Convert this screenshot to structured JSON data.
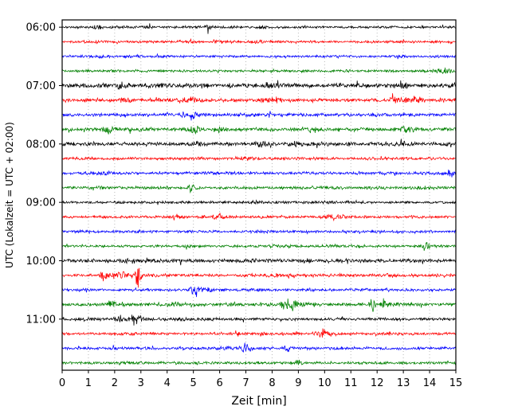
{
  "figure": {
    "background": "#ffffff",
    "frame_color": "#000000",
    "grid_color": "#b8b8b8"
  },
  "chart_data": {
    "type": "line",
    "subtype": "seismogram-dayplot",
    "title": "",
    "xlabel": "Zeit [min]",
    "ylabel": "UTC (Lokalzeit = UTC + 02:00)",
    "x_range": [
      0,
      15
    ],
    "x_ticks": [
      "0",
      "1",
      "2",
      "3",
      "4",
      "5",
      "6",
      "7",
      "8",
      "9",
      "10",
      "11",
      "12",
      "13",
      "14",
      "15"
    ],
    "minutes_per_row": 15,
    "grid": "dotted vertical line at every minute",
    "legend": "none",
    "hour_labels": [
      "06:00",
      "07:00",
      "08:00",
      "09:00",
      "10:00",
      "11:00"
    ],
    "hour_label_rows": [
      0,
      4,
      8,
      12,
      16,
      20
    ],
    "trace_colors": [
      "#000000",
      "#ff0000",
      "#0000ff",
      "#008000"
    ],
    "rows": [
      {
        "start": "06:00",
        "color_index": 0,
        "amp": 1.0,
        "events": [
          {
            "x": 1.3,
            "a": 1.6,
            "w": 0.15
          },
          {
            "x": 5.6,
            "a": 1.6,
            "w": 0.12
          },
          {
            "x": 7.6,
            "a": 1.4,
            "w": 0.12
          }
        ]
      },
      {
        "start": "06:15",
        "color_index": 1,
        "amp": 1.0,
        "events": [
          {
            "x": 7.5,
            "a": 1.0,
            "w": 0.25
          }
        ]
      },
      {
        "start": "06:30",
        "color_index": 2,
        "amp": 1.0,
        "events": [
          {
            "x": 1.5,
            "a": 0.9,
            "w": 0.15
          },
          {
            "x": 10.5,
            "a": 0.9,
            "w": 0.15
          }
        ]
      },
      {
        "start": "06:45",
        "color_index": 3,
        "amp": 1.1,
        "events": [
          {
            "x": 14.5,
            "a": 1.6,
            "w": 0.3
          }
        ]
      },
      {
        "start": "07:00",
        "color_index": 0,
        "amp": 1.8,
        "events": [
          {
            "x": 2.3,
            "a": 0.9,
            "w": 0.3
          },
          {
            "x": 5.5,
            "a": 0.8,
            "w": 0.2
          },
          {
            "x": 8.0,
            "a": 0.8,
            "w": 0.3
          },
          {
            "x": 13.0,
            "a": 0.7,
            "w": 0.3
          }
        ]
      },
      {
        "start": "07:15",
        "color_index": 1,
        "amp": 1.5,
        "events": [
          {
            "x": 2.4,
            "a": 1.2,
            "w": 0.2
          },
          {
            "x": 4.8,
            "a": 1.8,
            "w": 0.35
          },
          {
            "x": 8.0,
            "a": 1.2,
            "w": 0.3
          },
          {
            "x": 12.7,
            "a": 1.8,
            "w": 0.2
          },
          {
            "x": 13.6,
            "a": 1.2,
            "w": 0.2
          }
        ]
      },
      {
        "start": "07:30",
        "color_index": 2,
        "amp": 1.4,
        "events": [
          {
            "x": 4.6,
            "a": 1.2,
            "w": 0.15
          },
          {
            "x": 5.0,
            "a": 1.8,
            "w": 0.18
          }
        ]
      },
      {
        "start": "07:45",
        "color_index": 3,
        "amp": 1.5,
        "events": [
          {
            "x": 1.8,
            "a": 1.6,
            "w": 0.25
          },
          {
            "x": 5.0,
            "a": 1.4,
            "w": 0.3
          },
          {
            "x": 6.0,
            "a": 1.2,
            "w": 0.2
          },
          {
            "x": 9.5,
            "a": 0.9,
            "w": 0.3
          },
          {
            "x": 13.0,
            "a": 1.1,
            "w": 0.4
          }
        ]
      },
      {
        "start": "08:00",
        "color_index": 0,
        "amp": 1.7,
        "events": [
          {
            "x": 5.2,
            "a": 0.9,
            "w": 0.3
          },
          {
            "x": 7.6,
            "a": 1.4,
            "w": 0.2
          },
          {
            "x": 9.0,
            "a": 0.8,
            "w": 0.2
          }
        ]
      },
      {
        "start": "08:15",
        "color_index": 1,
        "amp": 1.2,
        "events": [
          {
            "x": 7.0,
            "a": 0.8,
            "w": 0.3
          }
        ]
      },
      {
        "start": "08:30",
        "color_index": 2,
        "amp": 1.2,
        "events": [
          {
            "x": 14.8,
            "a": 1.0,
            "w": 0.2
          }
        ]
      },
      {
        "start": "08:45",
        "color_index": 3,
        "amp": 1.2,
        "events": [
          {
            "x": 4.9,
            "a": 2.2,
            "w": 0.12
          },
          {
            "x": 13.5,
            "a": 0.9,
            "w": 0.2
          }
        ]
      },
      {
        "start": "09:00",
        "color_index": 0,
        "amp": 1.1,
        "events": [
          {
            "x": 7.3,
            "a": 0.8,
            "w": 0.2
          }
        ]
      },
      {
        "start": "09:15",
        "color_index": 1,
        "amp": 1.2,
        "events": [
          {
            "x": 6.0,
            "a": 0.8,
            "w": 0.2
          },
          {
            "x": 10.4,
            "a": 1.8,
            "w": 0.3
          }
        ]
      },
      {
        "start": "09:30",
        "color_index": 2,
        "amp": 1.1,
        "events": []
      },
      {
        "start": "09:45",
        "color_index": 3,
        "amp": 1.1,
        "events": [
          {
            "x": 13.9,
            "a": 1.4,
            "w": 0.15
          }
        ]
      },
      {
        "start": "10:00",
        "color_index": 0,
        "amp": 1.5,
        "events": [
          {
            "x": 2.6,
            "a": 1.0,
            "w": 0.3
          },
          {
            "x": 9.3,
            "a": 0.9,
            "w": 0.2
          }
        ]
      },
      {
        "start": "10:15",
        "color_index": 1,
        "amp": 1.3,
        "events": [
          {
            "x": 1.6,
            "a": 3.0,
            "w": 0.15
          },
          {
            "x": 2.2,
            "a": 1.6,
            "w": 0.3
          },
          {
            "x": 2.9,
            "a": 7.0,
            "w": 0.12
          }
        ]
      },
      {
        "start": "10:30",
        "color_index": 2,
        "amp": 1.2,
        "events": [
          {
            "x": 5.1,
            "a": 3.2,
            "w": 0.2
          },
          {
            "x": 5.6,
            "a": 1.4,
            "w": 0.15
          }
        ]
      },
      {
        "start": "10:45",
        "color_index": 3,
        "amp": 1.4,
        "events": [
          {
            "x": 2.0,
            "a": 1.8,
            "w": 0.3
          },
          {
            "x": 4.2,
            "a": 1.2,
            "w": 0.2
          },
          {
            "x": 8.7,
            "a": 4.0,
            "w": 0.3
          },
          {
            "x": 11.8,
            "a": 5.0,
            "w": 0.08
          },
          {
            "x": 12.3,
            "a": 1.4,
            "w": 0.3
          }
        ]
      },
      {
        "start": "11:00",
        "color_index": 0,
        "amp": 1.3,
        "events": [
          {
            "x": 2.2,
            "a": 1.4,
            "w": 0.2
          },
          {
            "x": 2.8,
            "a": 2.8,
            "w": 0.22
          }
        ]
      },
      {
        "start": "11:15",
        "color_index": 1,
        "amp": 1.2,
        "events": [
          {
            "x": 9.9,
            "a": 3.8,
            "w": 0.2
          },
          {
            "x": 10.3,
            "a": 1.4,
            "w": 0.2
          }
        ]
      },
      {
        "start": "11:30",
        "color_index": 2,
        "amp": 1.2,
        "events": [
          {
            "x": 7.0,
            "a": 2.4,
            "w": 0.25
          },
          {
            "x": 8.6,
            "a": 2.8,
            "w": 0.12
          }
        ]
      },
      {
        "start": "11:45",
        "color_index": 3,
        "amp": 1.2,
        "events": [
          {
            "x": 9.0,
            "a": 1.6,
            "w": 0.15
          }
        ]
      }
    ]
  }
}
